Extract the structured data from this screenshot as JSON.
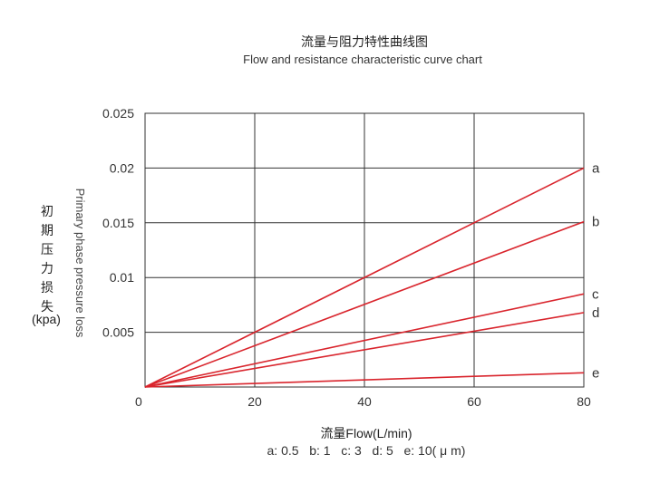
{
  "chart_data": {
    "type": "line",
    "title": "流量与阻力特性曲线图",
    "subtitle": "Flow and resistance characteristic curve chart",
    "xlabel": "流量Flow(L/min)",
    "ylabel_cn": "初期压力损失",
    "ylabel_unit": "(kpa)",
    "ylabel_en": "Primary phase pressure loss",
    "xlim": [
      0,
      80
    ],
    "ylim": [
      0,
      0.025
    ],
    "x_ticks": [
      "0",
      "20",
      "40",
      "60",
      "80"
    ],
    "y_ticks": [
      "0.005",
      "0.01",
      "0.015",
      "0.02",
      "0.025"
    ],
    "grid": true,
    "series_color": "#d9252d",
    "series": [
      {
        "name": "a",
        "x": [
          0,
          80
        ],
        "y": [
          0,
          0.02
        ]
      },
      {
        "name": "b",
        "x": [
          0,
          80
        ],
        "y": [
          0,
          0.0151
        ]
      },
      {
        "name": "c",
        "x": [
          0,
          80
        ],
        "y": [
          0,
          0.0085
        ]
      },
      {
        "name": "d",
        "x": [
          0,
          80
        ],
        "y": [
          0,
          0.0068
        ]
      },
      {
        "name": "e",
        "x": [
          0,
          80
        ],
        "y": [
          0,
          0.0013
        ]
      }
    ],
    "legend": "a: 0.5   b: 1   c: 3   d: 5   e: 10( μ m)"
  }
}
